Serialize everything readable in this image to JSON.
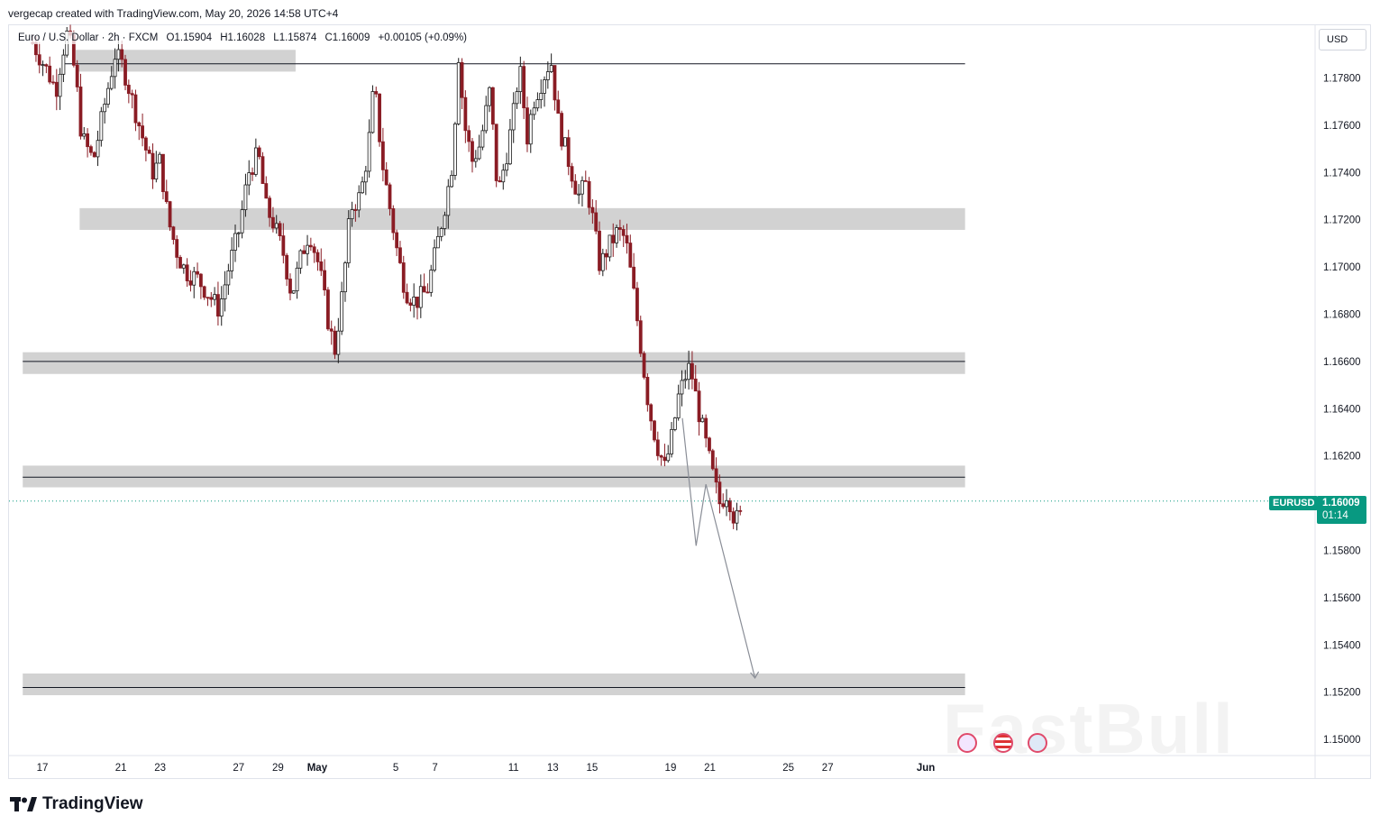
{
  "header": {
    "credit": "vergecap created with TradingView.com, May 20, 2026 14:58 UTC+4"
  },
  "legend": {
    "symbol_desc": "Euro / U.S. Dollar · 2h · FXCM",
    "open": "O1.15904",
    "high": "H1.16028",
    "low": "L1.15874",
    "close": "C1.16009",
    "change": "+0.00105 (+0.09%)"
  },
  "currency_button": "USD",
  "last_price": {
    "symbol": "EURUSD",
    "price": "1.16009",
    "countdown": "01:14",
    "value": 1.16009
  },
  "colors": {
    "up": "#089981",
    "down": "#f23645",
    "candle_body_up": "#1b1b1b",
    "candle_body_down": "#8a1c24",
    "zone": "#c7c7c7",
    "accent": "#089981"
  },
  "footer": {
    "brand": "TradingView"
  },
  "watermark": "FastBull",
  "chart_data": {
    "type": "candlestick",
    "symbol": "EURUSD",
    "timeframe": "2h",
    "ylim": [
      1.149,
      1.18
    ],
    "y_ticks": [
      1.178,
      1.176,
      1.174,
      1.172,
      1.17,
      1.168,
      1.166,
      1.164,
      1.162,
      1.16,
      1.158,
      1.156,
      1.154,
      1.152,
      1.15
    ],
    "y_tick_labels": [
      "1.17800",
      "1.17600",
      "1.17400",
      "1.17200",
      "1.17000",
      "1.16800",
      "1.16600",
      "1.16400",
      "1.16200",
      "1.16000",
      "1.15800",
      "1.15600",
      "1.15400",
      "1.15200",
      "1.15000"
    ],
    "x_tick_labels": [
      "17",
      "21",
      "23",
      "27",
      "29",
      "May",
      "5",
      "7",
      "11",
      "13",
      "15",
      "19",
      "21",
      "25",
      "27",
      "Jun"
    ],
    "x_tick_days": [
      0,
      4,
      6,
      10,
      12,
      14,
      18,
      20,
      24,
      26,
      28,
      32,
      34,
      38,
      40,
      45
    ],
    "zones": [
      {
        "low": 1.1785,
        "high": 1.179,
        "from_day": 1.7,
        "to_day": 12.9
      },
      {
        "low": 1.1718,
        "high": 1.1723,
        "from_day": 1.9,
        "to_day": 47
      },
      {
        "low": 1.1657,
        "high": 1.1662,
        "from_day": -1,
        "to_day": 47
      },
      {
        "low": 1.1609,
        "high": 1.1614,
        "from_day": -1,
        "to_day": 47
      },
      {
        "low": 1.1521,
        "high": 1.1526,
        "from_day": -1,
        "to_day": 47
      }
    ],
    "hlines": [
      {
        "value": 1.1786,
        "from_day": 1.0,
        "to_day": 47
      },
      {
        "value": 1.166,
        "from_day": -1,
        "to_day": 47
      },
      {
        "value": 1.1611,
        "from_day": -1,
        "to_day": 47
      },
      {
        "value": 1.1522,
        "from_day": -1,
        "to_day": 47
      }
    ],
    "projection_path": [
      {
        "day": 32.6,
        "price": 1.1636
      },
      {
        "day": 33.3,
        "price": 1.1582
      },
      {
        "day": 33.8,
        "price": 1.1608
      },
      {
        "day": 36.3,
        "price": 1.1526
      }
    ],
    "candles_close_path": [
      [
        -0.5,
        1.1795
      ],
      [
        0.3,
        1.1782
      ],
      [
        0.7,
        1.1775
      ],
      [
        1.0,
        1.179
      ],
      [
        1.3,
        1.18
      ],
      [
        1.7,
        1.178
      ],
      [
        2.0,
        1.1755
      ],
      [
        2.6,
        1.1745
      ],
      [
        3.2,
        1.177
      ],
      [
        3.7,
        1.179
      ],
      [
        4.1,
        1.1785
      ],
      [
        4.6,
        1.177
      ],
      [
        5.1,
        1.1755
      ],
      [
        5.6,
        1.174
      ],
      [
        6.0,
        1.1745
      ],
      [
        6.4,
        1.172
      ],
      [
        6.9,
        1.1705
      ],
      [
        7.3,
        1.1698
      ],
      [
        7.9,
        1.1695
      ],
      [
        8.5,
        1.1688
      ],
      [
        9.0,
        1.1682
      ],
      [
        9.5,
        1.17
      ],
      [
        10.0,
        1.1715
      ],
      [
        10.5,
        1.174
      ],
      [
        11.0,
        1.1748
      ],
      [
        11.4,
        1.1725
      ],
      [
        11.8,
        1.1718
      ],
      [
        12.3,
        1.1705
      ],
      [
        12.7,
        1.1688
      ],
      [
        13.2,
        1.1705
      ],
      [
        13.6,
        1.1715
      ],
      [
        14.1,
        1.17
      ],
      [
        14.6,
        1.1675
      ],
      [
        14.9,
        1.1665
      ],
      [
        15.3,
        1.169
      ],
      [
        15.7,
        1.1725
      ],
      [
        16.2,
        1.173
      ],
      [
        16.6,
        1.175
      ],
      [
        16.9,
        1.1778
      ],
      [
        17.3,
        1.1745
      ],
      [
        17.7,
        1.1725
      ],
      [
        18.1,
        1.1705
      ],
      [
        18.5,
        1.169
      ],
      [
        19.0,
        1.1685
      ],
      [
        19.6,
        1.169
      ],
      [
        20.0,
        1.1705
      ],
      [
        20.6,
        1.173
      ],
      [
        20.9,
        1.1745
      ],
      [
        21.2,
        1.179
      ],
      [
        21.5,
        1.176
      ],
      [
        21.9,
        1.1745
      ],
      [
        22.3,
        1.1752
      ],
      [
        22.8,
        1.1775
      ],
      [
        23.2,
        1.173
      ],
      [
        23.7,
        1.175
      ],
      [
        24.0,
        1.1765
      ],
      [
        24.3,
        1.1785
      ],
      [
        24.7,
        1.1755
      ],
      [
        25.0,
        1.177
      ],
      [
        25.4,
        1.1778
      ],
      [
        25.9,
        1.1788
      ],
      [
        26.3,
        1.176
      ],
      [
        26.8,
        1.1745
      ],
      [
        27.3,
        1.173
      ],
      [
        27.7,
        1.1735
      ],
      [
        28.0,
        1.1722
      ],
      [
        28.4,
        1.17
      ],
      [
        28.8,
        1.1708
      ],
      [
        29.3,
        1.1715
      ],
      [
        29.7,
        1.1712
      ],
      [
        30.1,
        1.169
      ],
      [
        30.5,
        1.1665
      ],
      [
        30.9,
        1.164
      ],
      [
        31.3,
        1.1625
      ],
      [
        31.7,
        1.1615
      ],
      [
        32.0,
        1.1625
      ],
      [
        32.4,
        1.1645
      ],
      [
        32.8,
        1.1655
      ],
      [
        33.0,
        1.1658
      ],
      [
        33.4,
        1.164
      ],
      [
        33.8,
        1.1625
      ],
      [
        34.2,
        1.161
      ],
      [
        34.5,
        1.16
      ],
      [
        34.9,
        1.1605
      ],
      [
        35.2,
        1.1595
      ],
      [
        35.5,
        1.1592
      ],
      [
        35.7,
        1.1601
      ]
    ]
  },
  "event_icons": [
    {
      "name": "earnings-event-icon",
      "day": 34.1
    },
    {
      "name": "us-flag-event-icon",
      "day": 34.9
    },
    {
      "name": "economic-event-icon",
      "day": 35.9
    }
  ]
}
